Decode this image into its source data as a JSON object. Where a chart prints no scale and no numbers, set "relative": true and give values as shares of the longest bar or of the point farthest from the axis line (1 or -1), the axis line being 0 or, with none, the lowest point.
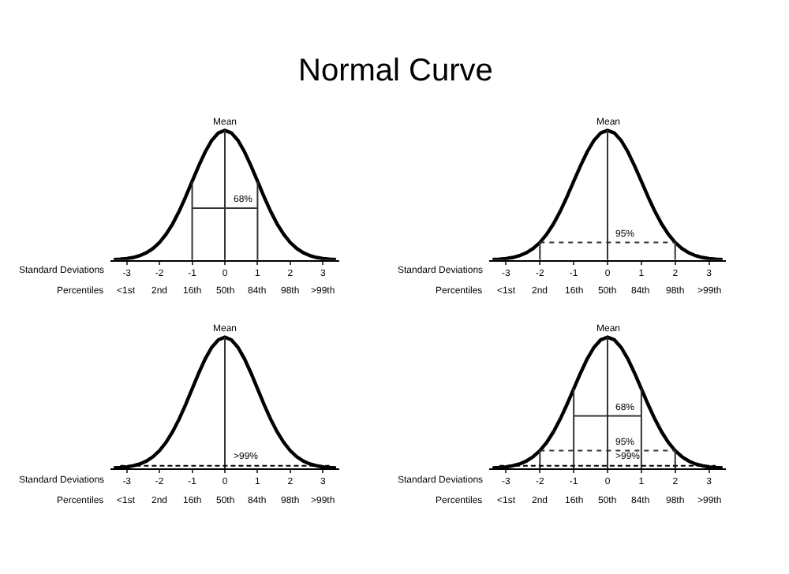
{
  "chart_data": [
    {
      "type": "line",
      "relative": true,
      "title": "Normal Curve",
      "xlabel": "Standard Deviations",
      "xlim": [
        -3.5,
        3.5
      ],
      "xticks": [
        -3,
        -2,
        -1,
        0,
        1,
        2,
        3
      ],
      "annotations": [
        "Percentiles",
        "<1st",
        "2nd",
        "16th",
        "50th",
        "84th",
        "98th",
        ">99th"
      ],
      "series": [
        {
          "color": "#000000",
          "line_style": "solid",
          "x": [
            -3.4,
            -3.2,
            -3.0,
            -2.8,
            -2.6,
            -2.4,
            -2.2,
            -2.0,
            -1.8,
            -1.6,
            -1.4,
            -1.2,
            -1.0,
            -0.8,
            -0.6,
            -0.4,
            -0.2,
            0,
            0.2,
            0.4,
            0.6,
            0.8,
            1.0,
            1.2,
            1.4,
            1.6,
            1.8,
            2.0,
            2.2,
            2.4,
            2.6,
            2.8,
            3.0,
            3.2,
            3.4
          ],
          "values": [
            0.003,
            0.006,
            0.011,
            0.02,
            0.034,
            0.056,
            0.089,
            0.135,
            0.198,
            0.278,
            0.375,
            0.487,
            0.607,
            0.726,
            0.835,
            0.923,
            0.98,
            1,
            0.98,
            0.923,
            0.835,
            0.726,
            0.607,
            0.487,
            0.375,
            0.278,
            0.198,
            0.135,
            0.089,
            0.056,
            0.034,
            0.02,
            0.011,
            0.006,
            0.003
          ]
        },
        {
          "name": "Mean",
          "color": "#333333",
          "line_style": "solid",
          "x": [
            0,
            0
          ],
          "values": [
            0,
            1
          ]
        },
        {
          "color": "#333333",
          "line_style": "solid",
          "x": [
            -1,
            -1
          ],
          "values": [
            0,
            0.607
          ]
        },
        {
          "color": "#333333",
          "line_style": "solid",
          "x": [
            1,
            1
          ],
          "values": [
            0,
            0.607
          ]
        },
        {
          "name": "68%",
          "color": "#333333",
          "line_style": "solid",
          "x": [
            -1,
            1
          ],
          "values": [
            0.4,
            0.4
          ]
        }
      ]
    },
    {
      "type": "line",
      "relative": true,
      "xlabel": "Standard Deviations",
      "xlim": [
        -3.5,
        3.5
      ],
      "xticks": [
        -3,
        -2,
        -1,
        0,
        1,
        2,
        3
      ],
      "annotations": [
        "Percentiles",
        "<1st",
        "2nd",
        "16th",
        "50th",
        "84th",
        "98th",
        ">99th"
      ],
      "series": [
        {
          "color": "#000000",
          "line_style": "solid",
          "x": [
            -3.4,
            -3.2,
            -3.0,
            -2.8,
            -2.6,
            -2.4,
            -2.2,
            -2.0,
            -1.8,
            -1.6,
            -1.4,
            -1.2,
            -1.0,
            -0.8,
            -0.6,
            -0.4,
            -0.2,
            0,
            0.2,
            0.4,
            0.6,
            0.8,
            1.0,
            1.2,
            1.4,
            1.6,
            1.8,
            2.0,
            2.2,
            2.4,
            2.6,
            2.8,
            3.0,
            3.2,
            3.4
          ],
          "values": [
            0.003,
            0.006,
            0.011,
            0.02,
            0.034,
            0.056,
            0.089,
            0.135,
            0.198,
            0.278,
            0.375,
            0.487,
            0.607,
            0.726,
            0.835,
            0.923,
            0.98,
            1,
            0.98,
            0.923,
            0.835,
            0.726,
            0.607,
            0.487,
            0.375,
            0.278,
            0.198,
            0.135,
            0.089,
            0.056,
            0.034,
            0.02,
            0.011,
            0.006,
            0.003
          ]
        },
        {
          "name": "Mean",
          "color": "#333333",
          "line_style": "solid",
          "x": [
            0,
            0
          ],
          "values": [
            0,
            1
          ]
        },
        {
          "color": "#333333",
          "line_style": "solid",
          "x": [
            -2,
            -2
          ],
          "values": [
            0,
            0.135
          ]
        },
        {
          "color": "#333333",
          "line_style": "solid",
          "x": [
            2,
            2
          ],
          "values": [
            0,
            0.135
          ]
        },
        {
          "name": "95%",
          "color": "#333333",
          "line_style": "dotted",
          "x": [
            -2,
            2
          ],
          "values": [
            0.135,
            0.135
          ]
        }
      ]
    },
    {
      "type": "line",
      "relative": true,
      "xlabel": "Standard Deviations",
      "xlim": [
        -3.5,
        3.5
      ],
      "xticks": [
        -3,
        -2,
        -1,
        0,
        1,
        2,
        3
      ],
      "annotations": [
        "Percentiles",
        "<1st",
        "2nd",
        "16th",
        "50th",
        "84th",
        "98th",
        ">99th"
      ],
      "series": [
        {
          "color": "#000000",
          "line_style": "solid",
          "x": [
            -3.4,
            -3.2,
            -3.0,
            -2.8,
            -2.6,
            -2.4,
            -2.2,
            -2.0,
            -1.8,
            -1.6,
            -1.4,
            -1.2,
            -1.0,
            -0.8,
            -0.6,
            -0.4,
            -0.2,
            0,
            0.2,
            0.4,
            0.6,
            0.8,
            1.0,
            1.2,
            1.4,
            1.6,
            1.8,
            2.0,
            2.2,
            2.4,
            2.6,
            2.8,
            3.0,
            3.2,
            3.4
          ],
          "values": [
            0.003,
            0.006,
            0.011,
            0.02,
            0.034,
            0.056,
            0.089,
            0.135,
            0.198,
            0.278,
            0.375,
            0.487,
            0.607,
            0.726,
            0.835,
            0.923,
            0.98,
            1,
            0.98,
            0.923,
            0.835,
            0.726,
            0.607,
            0.487,
            0.375,
            0.278,
            0.198,
            0.135,
            0.089,
            0.056,
            0.034,
            0.02,
            0.011,
            0.006,
            0.003
          ]
        },
        {
          "name": "Mean",
          "color": "#333333",
          "line_style": "solid",
          "x": [
            0,
            0
          ],
          "values": [
            0,
            1
          ]
        },
        {
          "name": ">99%",
          "color": "#000000",
          "line_style": "dashed",
          "x": [
            -3.2,
            3.2
          ],
          "values": [
            0.02,
            0.02
          ]
        }
      ]
    },
    {
      "type": "line",
      "relative": true,
      "xlabel": "Standard Deviations",
      "xlim": [
        -3.5,
        3.5
      ],
      "xticks": [
        -3,
        -2,
        -1,
        0,
        1,
        2,
        3
      ],
      "annotations": [
        "Percentiles",
        "<1st",
        "2nd",
        "16th",
        "50th",
        "84th",
        "98th",
        ">99th"
      ],
      "series": [
        {
          "color": "#000000",
          "line_style": "solid",
          "x": [
            -3.4,
            -3.2,
            -3.0,
            -2.8,
            -2.6,
            -2.4,
            -2.2,
            -2.0,
            -1.8,
            -1.6,
            -1.4,
            -1.2,
            -1.0,
            -0.8,
            -0.6,
            -0.4,
            -0.2,
            0,
            0.2,
            0.4,
            0.6,
            0.8,
            1.0,
            1.2,
            1.4,
            1.6,
            1.8,
            2.0,
            2.2,
            2.4,
            2.6,
            2.8,
            3.0,
            3.2,
            3.4
          ],
          "values": [
            0.003,
            0.006,
            0.011,
            0.02,
            0.034,
            0.056,
            0.089,
            0.135,
            0.198,
            0.278,
            0.375,
            0.487,
            0.607,
            0.726,
            0.835,
            0.923,
            0.98,
            1,
            0.98,
            0.923,
            0.835,
            0.726,
            0.607,
            0.487,
            0.375,
            0.278,
            0.198,
            0.135,
            0.089,
            0.056,
            0.034,
            0.02,
            0.011,
            0.006,
            0.003
          ]
        },
        {
          "name": "Mean",
          "color": "#333333",
          "line_style": "solid",
          "x": [
            0,
            0
          ],
          "values": [
            0,
            1
          ]
        },
        {
          "color": "#333333",
          "line_style": "solid",
          "x": [
            -1,
            -1
          ],
          "values": [
            0,
            0.607
          ]
        },
        {
          "color": "#333333",
          "line_style": "solid",
          "x": [
            1,
            1
          ],
          "values": [
            0,
            0.607
          ]
        },
        {
          "color": "#333333",
          "line_style": "solid",
          "x": [
            -2,
            -2
          ],
          "values": [
            0,
            0.135
          ]
        },
        {
          "color": "#333333",
          "line_style": "solid",
          "x": [
            2,
            2
          ],
          "values": [
            0,
            0.135
          ]
        },
        {
          "name": "68%",
          "color": "#333333",
          "line_style": "solid",
          "x": [
            -1,
            1
          ],
          "values": [
            0.4,
            0.4
          ]
        },
        {
          "name": "95%",
          "color": "#333333",
          "line_style": "dotted",
          "x": [
            -2,
            2
          ],
          "values": [
            0.135,
            0.135
          ]
        },
        {
          "name": ">99%",
          "color": "#000000",
          "line_style": "dashed",
          "x": [
            -3.2,
            3.2
          ],
          "values": [
            0.02,
            0.02
          ]
        }
      ]
    }
  ]
}
